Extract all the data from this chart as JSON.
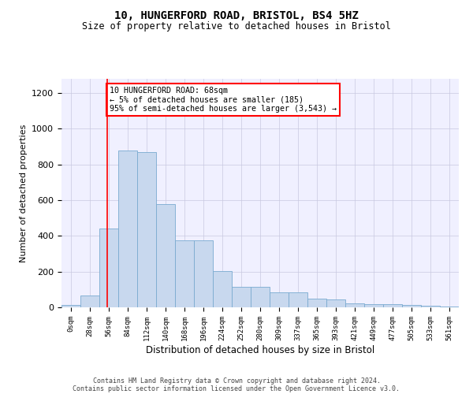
{
  "title1": "10, HUNGERFORD ROAD, BRISTOL, BS4 5HZ",
  "title2": "Size of property relative to detached houses in Bristol",
  "xlabel": "Distribution of detached houses by size in Bristol",
  "ylabel": "Number of detached properties",
  "bar_color": "#c8d8ee",
  "bar_edge_color": "#7aaad0",
  "bar_values": [
    12,
    65,
    440,
    880,
    870,
    580,
    375,
    375,
    205,
    115,
    115,
    85,
    85,
    50,
    42,
    20,
    18,
    18,
    12,
    8,
    5
  ],
  "x_labels": [
    "0sqm",
    "28sqm",
    "56sqm",
    "84sqm",
    "112sqm",
    "140sqm",
    "168sqm",
    "196sqm",
    "224sqm",
    "252sqm",
    "280sqm",
    "309sqm",
    "337sqm",
    "365sqm",
    "393sqm",
    "421sqm",
    "449sqm",
    "477sqm",
    "505sqm",
    "533sqm",
    "561sqm"
  ],
  "ylim": [
    0,
    1280
  ],
  "yticks": [
    0,
    200,
    400,
    600,
    800,
    1000,
    1200
  ],
  "annotation_text": "10 HUNGERFORD ROAD: 68sqm\n← 5% of detached houses are smaller (185)\n95% of semi-detached houses are larger (3,543) →",
  "vline_x": 2.43,
  "footer_line1": "Contains HM Land Registry data © Crown copyright and database right 2024.",
  "footer_line2": "Contains public sector information licensed under the Open Government Licence v3.0.",
  "background_color": "#f0f0ff",
  "grid_color": "#c8c8e0",
  "title_fontsize": 10,
  "subtitle_fontsize": 8.5
}
